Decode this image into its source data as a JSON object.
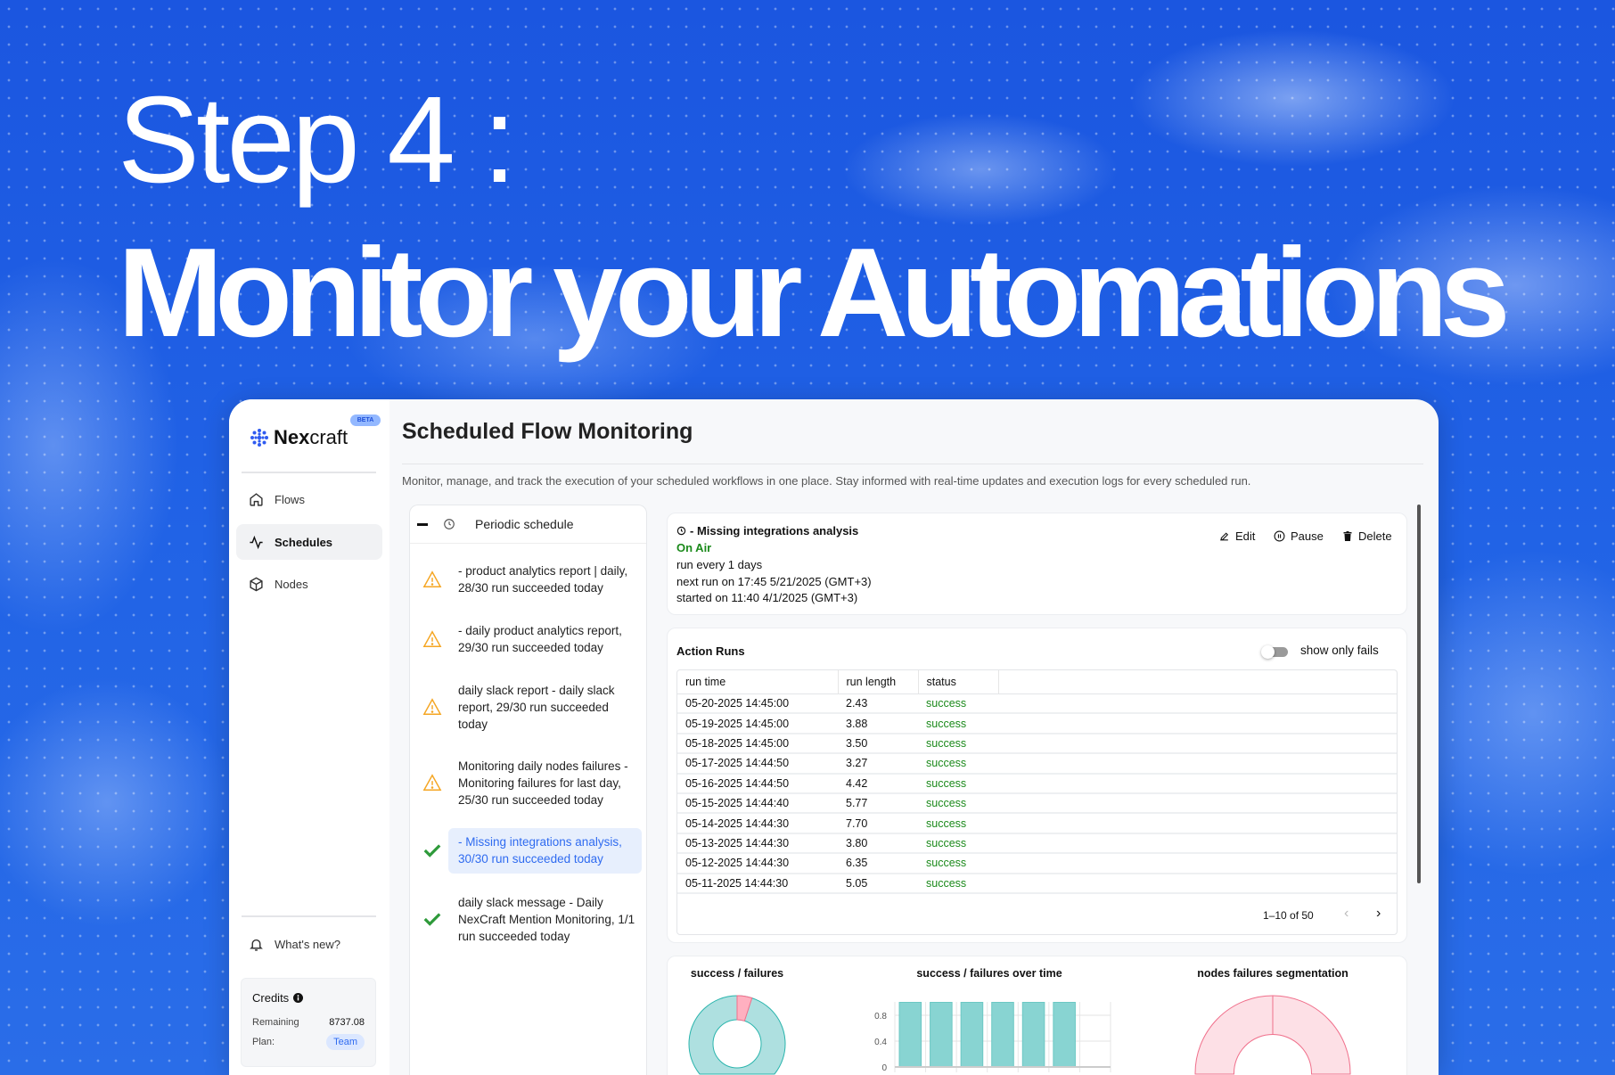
{
  "hero": {
    "step": "Step 4 :",
    "headline": "Monitor your Automations"
  },
  "brand": {
    "name_bold": "Nex",
    "name_rest": "craft",
    "badge": "BETA"
  },
  "sidebar": {
    "items": [
      {
        "label": "Flows",
        "icon": "home-icon"
      },
      {
        "label": "Schedules",
        "icon": "activity-icon",
        "active": true
      },
      {
        "label": "Nodes",
        "icon": "cube-icon"
      }
    ],
    "whats_new": "What's new?",
    "credits": {
      "title": "Credits",
      "remaining_label": "Remaining",
      "remaining_value": "8737.08",
      "plan_label": "Plan:",
      "plan_value": "Team"
    }
  },
  "page": {
    "title": "Scheduled Flow Monitoring",
    "description": "Monitor, manage, and track the execution of your scheduled workflows in one place. Stay informed with real-time updates and execution logs for every scheduled run."
  },
  "schedule_list": {
    "header": "Periodic schedule",
    "items": [
      {
        "text": "- product analytics report | daily, 28/30 run succeeded today",
        "status": "warning"
      },
      {
        "text": "- daily product analytics report, 29/30 run succeeded today",
        "status": "warning"
      },
      {
        "text": "daily slack report - daily slack report, 29/30 run succeeded today",
        "status": "warning"
      },
      {
        "text": "Monitoring daily nodes failures - Monitoring failures for last day, 25/30 run succeeded today",
        "status": "warning"
      },
      {
        "text": "- Missing integrations analysis, 30/30 run succeeded today",
        "status": "success",
        "selected": true
      },
      {
        "text": "daily slack message - Daily NexCraft Mention Monitoring, 1/1 run succeeded today",
        "status": "success"
      }
    ]
  },
  "detail": {
    "name": "- Missing integrations analysis",
    "state": "On Air",
    "interval": "run every 1 days",
    "next_run": "next run on 17:45 5/21/2025 (GMT+3)",
    "started": "started on 11:40 4/1/2025 (GMT+3)",
    "actions": {
      "edit": "Edit",
      "pause": "Pause",
      "delete": "Delete"
    }
  },
  "runs": {
    "title": "Action Runs",
    "toggle_label": "show only fails",
    "toggle_on": false,
    "columns": [
      "run time",
      "run length",
      "status"
    ],
    "rows": [
      [
        "05-20-2025 14:45:00",
        "2.43",
        "success"
      ],
      [
        "05-19-2025 14:45:00",
        "3.88",
        "success"
      ],
      [
        "05-18-2025 14:45:00",
        "3.50",
        "success"
      ],
      [
        "05-17-2025 14:44:50",
        "3.27",
        "success"
      ],
      [
        "05-16-2025 14:44:50",
        "4.42",
        "success"
      ],
      [
        "05-15-2025 14:44:40",
        "5.77",
        "success"
      ],
      [
        "05-14-2025 14:44:30",
        "7.70",
        "success"
      ],
      [
        "05-13-2025 14:44:30",
        "3.80",
        "success"
      ],
      [
        "05-12-2025 14:44:30",
        "6.35",
        "success"
      ],
      [
        "05-11-2025 14:44:30",
        "5.05",
        "success"
      ]
    ],
    "pagination": "1–10 of 50"
  },
  "colors": {
    "accent": "#2f6bf0",
    "success": "#1b8a1b",
    "warning": "#f5a623",
    "teal": "#88d4d2",
    "pink": "#ffb0c0"
  },
  "chart_data": [
    {
      "type": "pie",
      "title": "success / failures",
      "donut": true,
      "slices": [
        {
          "label": "success",
          "value": 95,
          "color": "#aee0e0"
        },
        {
          "label": "failures",
          "value": 5,
          "color": "#ffb0c0"
        }
      ]
    },
    {
      "type": "bar",
      "title": "success / failures over time",
      "values": [
        1,
        1,
        1,
        1,
        1,
        1,
        null
      ],
      "yticks": [
        "0",
        "0.4",
        "0.8"
      ],
      "ylim": [
        0,
        1
      ],
      "grid": true,
      "color": "#88d4d2"
    },
    {
      "type": "pie",
      "title": "nodes failures segmentation",
      "donut": true,
      "slices": [
        {
          "value": 100,
          "color": "#fde0e6"
        }
      ]
    }
  ]
}
